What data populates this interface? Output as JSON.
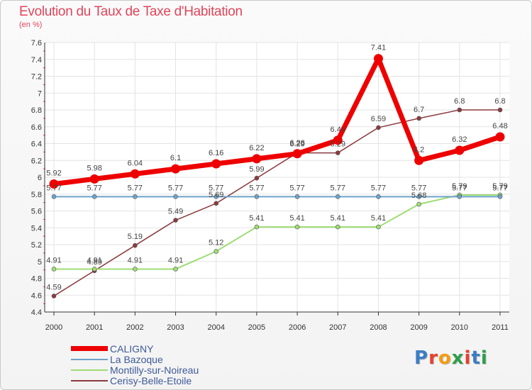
{
  "header": {
    "title": "Evolution du Taux de Taxe d'Habitation",
    "subtitle": "(en %)"
  },
  "logo": {
    "text": "Proxiti",
    "colors": [
      "#3b7dc4",
      "#e8412c",
      "#f39c12",
      "#2e9e4a",
      "#e8412c",
      "#3b7dc4",
      "#2e9e4a"
    ]
  },
  "chart_data": {
    "type": "line",
    "x": [
      "2000",
      "2001",
      "2002",
      "2003",
      "2004",
      "2005",
      "2006",
      "2007",
      "2008",
      "2009",
      "2010",
      "2011"
    ],
    "ylim": [
      4.4,
      7.6
    ],
    "yticks": [
      "4.4",
      "4.6",
      "4.8",
      "5",
      "5.2",
      "5.4",
      "5.6",
      "5.8",
      "6",
      "6.2",
      "6.4",
      "6.6",
      "6.8",
      "7",
      "7.2",
      "7.4",
      "7.6"
    ],
    "grid": true,
    "legend_position": "bottom-left",
    "series": [
      {
        "name": "CALIGNY",
        "color": "#ee0000",
        "values": [
          5.92,
          5.98,
          6.04,
          6.1,
          6.16,
          6.22,
          6.28,
          6.44,
          7.41,
          6.2,
          6.32,
          6.48
        ],
        "labels": [
          "5.92",
          "5.98",
          "6.04",
          "6.1",
          "6.16",
          "6.22",
          "6.28",
          "6.44",
          "7.41",
          "6.2",
          "6.32",
          "6.48"
        ]
      },
      {
        "name": "La Bazoque",
        "color": "#6ea3c9",
        "values": [
          5.77,
          5.77,
          5.77,
          5.77,
          5.77,
          5.77,
          5.77,
          5.77,
          5.77,
          5.77,
          5.77,
          5.77
        ],
        "labels": [
          "5.77",
          "5.77",
          "5.77",
          "5.77",
          "5.77",
          "5.77",
          "5.77",
          "5.77",
          "5.77",
          "5.77",
          "5.77",
          "5.77"
        ]
      },
      {
        "name": "Montilly-sur-Noireau",
        "color": "#9edc74",
        "values": [
          4.91,
          4.91,
          4.91,
          4.91,
          5.12,
          5.41,
          5.41,
          5.41,
          5.41,
          5.68,
          5.79,
          5.79
        ],
        "labels": [
          "4.91",
          "4.91",
          "4.91",
          "4.91",
          "5.12",
          "5.41",
          "5.41",
          "5.41",
          "5.41",
          "5.68",
          "5.79",
          "5.79"
        ]
      },
      {
        "name": "Cerisy-Belle-Etoile",
        "color": "#8b3a3f",
        "values": [
          4.59,
          4.89,
          5.19,
          5.49,
          5.69,
          5.99,
          6.29,
          6.29,
          6.59,
          6.7,
          6.8,
          6.8
        ],
        "labels": [
          "4.59",
          "4.89",
          "5.19",
          "5.49",
          "5.69",
          "5.99",
          "6.29",
          "6.29",
          "6.59",
          "6.7",
          "6.8",
          "6.8"
        ]
      }
    ]
  }
}
